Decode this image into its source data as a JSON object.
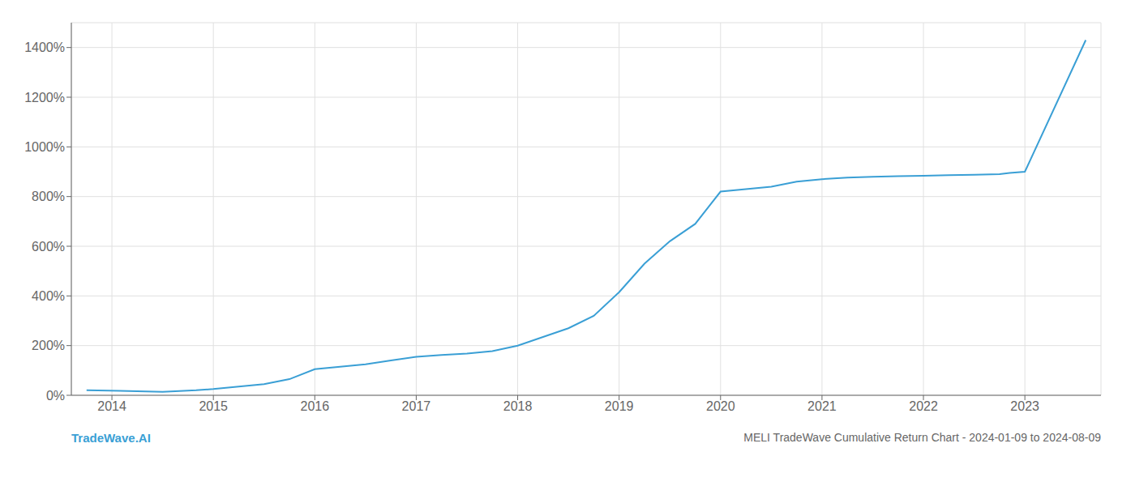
{
  "chart_data": {
    "type": "line",
    "title": "MELI TradeWave Cumulative Return Chart - 2024-01-09 to 2024-08-09",
    "annotations": [
      "TradeWave.AI"
    ],
    "color": "#3a9fd5",
    "x": [
      2013.75,
      2014.08,
      2014.5,
      2014.83,
      2015.0,
      2015.25,
      2015.5,
      2015.75,
      2016.0,
      2016.25,
      2016.5,
      2016.75,
      2017.0,
      2017.25,
      2017.5,
      2017.75,
      2018.0,
      2018.25,
      2018.5,
      2018.75,
      2019.0,
      2019.25,
      2019.5,
      2019.75,
      2020.0,
      2020.25,
      2020.5,
      2020.75,
      2021.0,
      2021.25,
      2021.5,
      2021.75,
      2022.0,
      2022.25,
      2022.5,
      2022.75,
      2022.85,
      2023.0,
      2023.6
    ],
    "values": [
      20,
      18,
      14,
      20,
      25,
      35,
      45,
      65,
      105,
      115,
      125,
      140,
      155,
      162,
      168,
      178,
      200,
      235,
      270,
      320,
      415,
      530,
      620,
      690,
      820,
      830,
      840,
      860,
      870,
      876,
      880,
      882,
      884,
      886,
      888,
      890,
      895,
      900,
      1430
    ],
    "xlim": [
      2013.6,
      2023.75
    ],
    "xticks": [
      2014,
      2015,
      2016,
      2017,
      2018,
      2019,
      2020,
      2021,
      2022,
      2023
    ],
    "ylim": [
      0,
      1500
    ],
    "yticks": [
      {
        "value": 0,
        "label": "0%"
      },
      {
        "value": 200,
        "label": "200%"
      },
      {
        "value": 400,
        "label": "400%"
      },
      {
        "value": 600,
        "label": "600%"
      },
      {
        "value": 800,
        "label": "800%"
      },
      {
        "value": 1000,
        "label": "1000%"
      },
      {
        "value": 1200,
        "label": "1200%"
      },
      {
        "value": 1400,
        "label": "1400%"
      }
    ],
    "grid": true
  }
}
